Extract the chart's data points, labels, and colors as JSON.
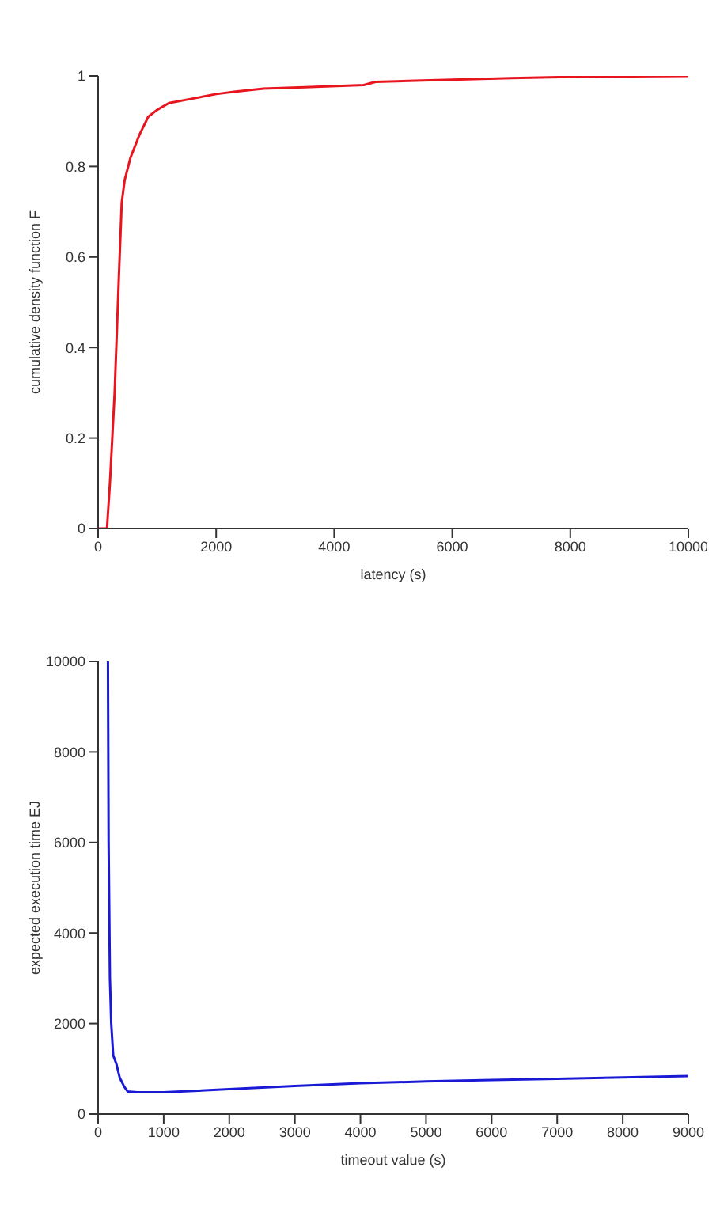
{
  "chart_data": [
    {
      "type": "line",
      "xlabel": "latency (s)",
      "ylabel": "cumulative density function F",
      "xlim": [
        0,
        10000
      ],
      "xticks": [
        0,
        2000,
        4000,
        6000,
        8000,
        10000
      ],
      "ylim": [
        0,
        1
      ],
      "yticks": [
        0,
        0.2,
        0.4,
        0.6,
        0.8,
        1
      ],
      "grid": false,
      "legend": false,
      "marker": "none",
      "series": [
        {
          "color": "#e8141e",
          "x": [
            0,
            150,
            200,
            280,
            350,
            400,
            450,
            550,
            700,
            850,
            1000,
            1200,
            1600,
            2000,
            2300,
            2800,
            3500,
            4500,
            4700,
            5500,
            7000,
            8000,
            10000
          ],
          "values": [
            0,
            0,
            0.1,
            0.3,
            0.55,
            0.72,
            0.77,
            0.82,
            0.87,
            0.91,
            0.925,
            0.94,
            0.95,
            0.96,
            0.965,
            0.972,
            0.975,
            0.98,
            0.987,
            0.99,
            0.995,
            0.998,
            1
          ]
        }
      ]
    },
    {
      "type": "line",
      "xlabel": "timeout value (s)",
      "ylabel": "expected execution time EJ",
      "xlim": [
        0,
        9000
      ],
      "xticks": [
        0,
        1000,
        2000,
        3000,
        4000,
        5000,
        6000,
        7000,
        8000,
        9000
      ],
      "ylim": [
        0,
        10000
      ],
      "yticks": [
        0,
        2000,
        4000,
        6000,
        8000,
        10000
      ],
      "grid": false,
      "legend": false,
      "marker": "none",
      "series": [
        {
          "color": "#1a1ad6",
          "x": [
            150,
            160,
            180,
            200,
            230,
            280,
            330,
            400,
            450,
            600,
            1000,
            2000,
            3000,
            4000,
            5000,
            6000,
            7000,
            8000,
            9000
          ],
          "values": [
            10000,
            6000,
            3000,
            2000,
            1300,
            1100,
            800,
            600,
            500,
            480,
            480,
            550,
            620,
            680,
            720,
            750,
            780,
            810,
            840
          ]
        }
      ]
    }
  ]
}
